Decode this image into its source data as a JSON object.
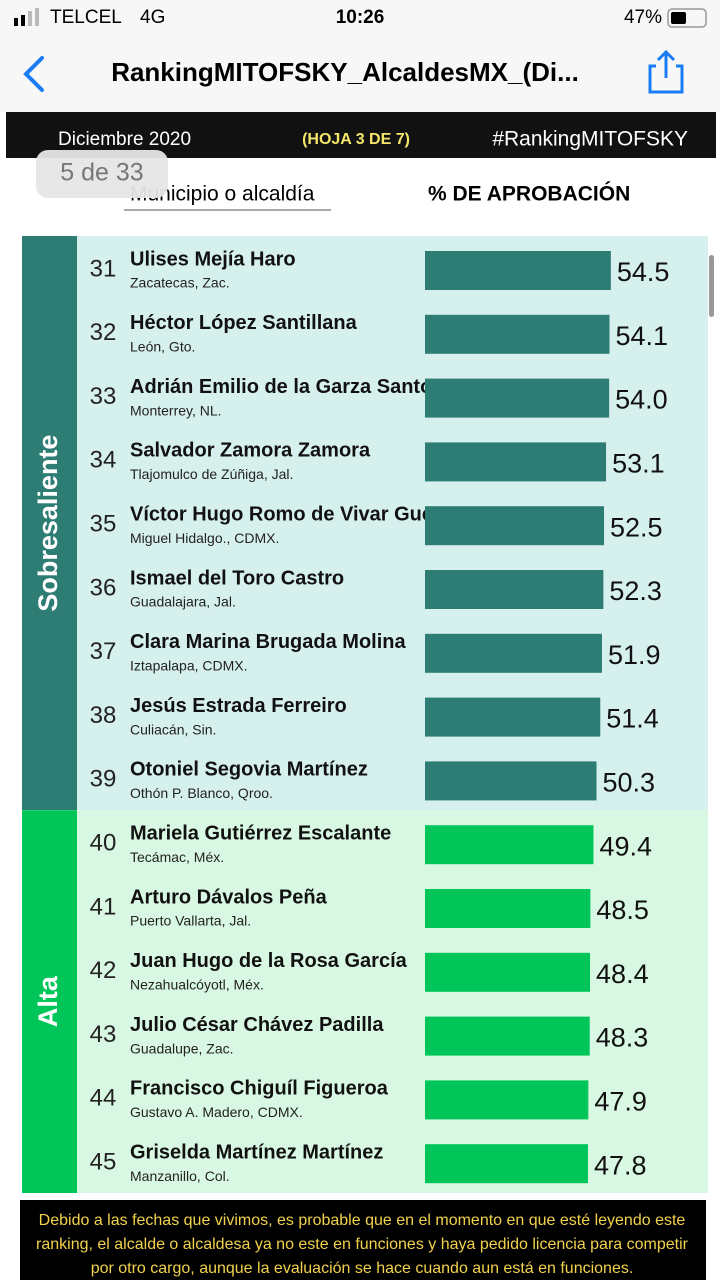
{
  "status_bar": {
    "carrier": "TELCEL",
    "network": "4G",
    "time": "10:26",
    "battery": "47%"
  },
  "nav": {
    "title": "RankingMITOFSKY_AlcaldesMX_(Di..."
  },
  "page_badge": "5 de 33",
  "sheet_header": {
    "date": "Diciembre 2020",
    "sheet": "(HOJA 3 DE 7)",
    "hashtag": "#RankingMITOFSKY"
  },
  "column_headers": {
    "name": "Municipio o alcaldía",
    "value": "% DE APROBACIÓN"
  },
  "chart_data": {
    "type": "bar",
    "groups": [
      {
        "name": "Sobresaliente",
        "color": "#2e7d75",
        "start": 0,
        "end": 9
      },
      {
        "name": "Alta",
        "color": "#00c65a",
        "start": 9,
        "end": 15
      }
    ],
    "ranks": [
      "31",
      "32",
      "33",
      "34",
      "35",
      "36",
      "37",
      "38",
      "39",
      "40",
      "41",
      "42",
      "43",
      "44",
      "45"
    ],
    "categories": [
      "Ulises Mejía Haro",
      "Héctor López Santillana",
      "Adrián Emilio de la Garza Santos",
      "Salvador Zamora Zamora",
      "Víctor Hugo Romo de Vivar Guerra",
      "Ismael del Toro Castro",
      "Clara Marina Brugada Molina",
      "Jesús Estrada Ferreiro",
      "Otoniel Segovia Martínez",
      "Mariela Gutiérrez Escalante",
      "Arturo Dávalos Peña",
      "Juan Hugo de la Rosa García",
      "Julio César Chávez Padilla",
      "Francisco Chiguíl Figueroa",
      "Griselda Martínez Martínez"
    ],
    "locations": [
      "Zacatecas, Zac.",
      "León, Gto.",
      "Monterrey, NL.",
      "Tlajomulco de Zúñiga, Jal.",
      "Miguel Hidalgo., CDMX.",
      "Guadalajara, Jal.",
      "Iztapalapa, CDMX.",
      "Culiacán, Sin.",
      "Othón P. Blanco, Qroo.",
      "Tecámac, Méx.",
      "Puerto Vallarta, Jal.",
      "Nezahualcóyotl, Méx.",
      "Guadalupe, Zac.",
      "Gustavo A. Madero, CDMX.",
      "Manzanillo, Col."
    ],
    "values": [
      54.5,
      54.1,
      54.0,
      53.1,
      52.5,
      52.3,
      51.9,
      51.4,
      50.3,
      49.4,
      48.5,
      48.4,
      48.3,
      47.9,
      47.8
    ],
    "value_labels": [
      "54.5",
      "54.1",
      "54.0",
      "53.1",
      "52.5",
      "52.3",
      "51.9",
      "51.4",
      "50.3",
      "49.4",
      "48.5",
      "48.4",
      "48.3",
      "47.9",
      "47.8"
    ]
  },
  "footer": {
    "lines": [
      "Debido a las fechas que vivimos, es probable que en el momento en que esté leyendo este",
      "ranking, el alcalde o alcaldesa ya no este en funciones y haya pedido licencia para competir",
      "por otro cargo, aunque la evaluación se hace cuando aun está en funciones."
    ]
  }
}
